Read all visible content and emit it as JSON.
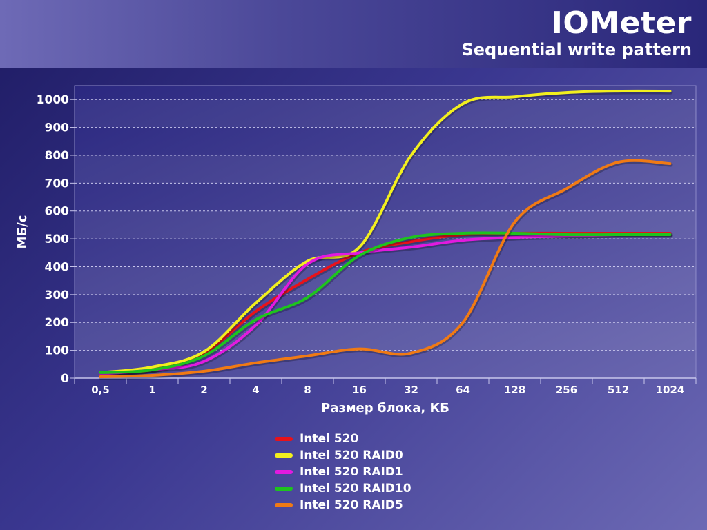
{
  "header": {
    "title": "IOMeter",
    "subtitle": "Sequential write pattern"
  },
  "chart_data": {
    "type": "line",
    "title": "IOMeter",
    "subtitle": "Sequential write pattern",
    "xlabel": "Размер блока, КБ",
    "ylabel": "МБ/с",
    "categories": [
      "0,5",
      "1",
      "2",
      "4",
      "8",
      "16",
      "32",
      "64",
      "128",
      "256",
      "512",
      "1024"
    ],
    "ylim": [
      0,
      1050
    ],
    "yticks": [
      0,
      100,
      200,
      300,
      400,
      500,
      600,
      700,
      800,
      900,
      1000
    ],
    "grid": true,
    "legend_position": "bottom-center",
    "series": [
      {
        "name": "Intel 520",
        "color": "#e8121a",
        "values": [
          20,
          30,
          90,
          240,
          355,
          450,
          490,
          515,
          520,
          520,
          520,
          520
        ]
      },
      {
        "name": "Intel 520 RAID0",
        "color": "#f2ef1e",
        "values": [
          20,
          40,
          95,
          270,
          420,
          470,
          800,
          985,
          1010,
          1025,
          1030,
          1030
        ]
      },
      {
        "name": "Intel 520 RAID1",
        "color": "#e21adf",
        "values": [
          15,
          30,
          60,
          190,
          410,
          450,
          470,
          495,
          505,
          510,
          515,
          515
        ]
      },
      {
        "name": "Intel 520 RAID10",
        "color": "#1ec31e",
        "values": [
          20,
          30,
          80,
          210,
          290,
          440,
          505,
          520,
          520,
          515,
          515,
          515
        ]
      },
      {
        "name": "Intel 520 RAID5",
        "color": "#f07a14",
        "values": [
          5,
          10,
          25,
          55,
          80,
          105,
          90,
          200,
          560,
          680,
          775,
          770
        ]
      }
    ]
  }
}
